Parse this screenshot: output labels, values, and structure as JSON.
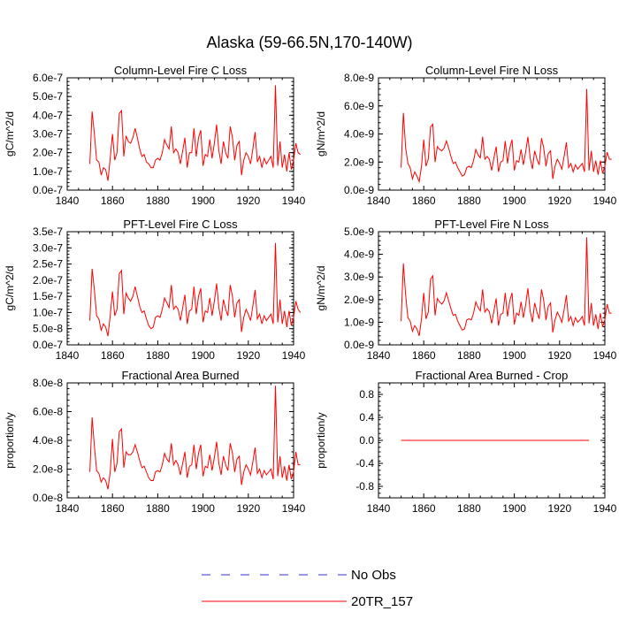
{
  "title": "Alaska (59-66.5N,170-140W)",
  "colors": {
    "series": "#ff0000",
    "obs": "#3333cc",
    "axis": "#000000"
  },
  "legend": [
    {
      "name": "No Obs",
      "style": "dashed",
      "color": "#3333cc"
    },
    {
      "name": "20TR_157",
      "style": "solid",
      "color": "#ff0000"
    }
  ],
  "chart_data": [
    {
      "type": "line",
      "title": "Column-Level Fire C Loss",
      "ylabel": "gC/m^2/d",
      "xlim": [
        1840,
        1940
      ],
      "ylim": [
        0,
        6e-07
      ],
      "xticks": [
        1840,
        1860,
        1880,
        1900,
        1920,
        1940
      ],
      "yticks": [
        0,
        1e-07,
        2e-07,
        3e-07,
        4e-07,
        5e-07,
        6e-07
      ],
      "ytick_labels": [
        "0.0e-7",
        "1.0e-7",
        "2.0e-7",
        "3.0e-7",
        "4.0e-7",
        "5.0e-7",
        "6.0e-7"
      ],
      "series": [
        {
          "name": "20TR_157",
          "start_year": 1850,
          "values": [
            1.4e-07,
            4.2e-07,
            3e-07,
            1.6e-07,
            1.5e-07,
            8e-08,
            1.2e-07,
            1.1e-07,
            5e-08,
            1.7e-07,
            3e-07,
            1.6e-07,
            2e-07,
            4.1e-07,
            4.25e-07,
            1.8e-07,
            2.9e-07,
            2.6e-07,
            2.5e-07,
            2.8e-07,
            3.3e-07,
            2.8e-07,
            2.2e-07,
            1.8e-07,
            1.9e-07,
            1.5e-07,
            1.4e-07,
            1.2e-07,
            1.2e-07,
            1.6e-07,
            1.7e-07,
            1.6e-07,
            2e-07,
            2.7e-07,
            2.4e-07,
            2.2e-07,
            3.4e-07,
            2e-07,
            2.2e-07,
            2e-07,
            1.4e-07,
            2.1e-07,
            2.8e-07,
            1.2e-07,
            2e-07,
            2e-07,
            3.3e-07,
            1.8e-07,
            2.8e-07,
            3.2e-07,
            1.3e-07,
            1.9e-07,
            1.8e-07,
            2.7e-07,
            1.7e-07,
            2.5e-07,
            3.5e-07,
            2.1e-07,
            1.4e-07,
            2.6e-07,
            2e-07,
            1.7e-07,
            3.4e-07,
            2.8e-07,
            1.6e-07,
            2.4e-07,
            2.6e-07,
            8e-08,
            1.6e-07,
            2e-07,
            1.8e-07,
            1.4e-07,
            2.2e-07,
            3.1e-07,
            1.5e-07,
            1.8e-07,
            1.2e-07,
            1.7e-07,
            1.4e-07,
            1.6e-07,
            1.8e-07,
            1.2e-07,
            5.6e-07,
            1.3e-07,
            2.6e-07,
            1.2e-07,
            1.9e-07,
            1e-07,
            2e-07,
            1.1e-07,
            1.6e-07,
            2.5e-07,
            2e-07,
            1.9e-07
          ]
        }
      ]
    },
    {
      "type": "line",
      "title": "Column-Level Fire N Loss",
      "ylabel": "gN/m^2/d",
      "xlim": [
        1840,
        1940
      ],
      "ylim": [
        0,
        8e-09
      ],
      "xticks": [
        1840,
        1860,
        1880,
        1900,
        1920,
        1940
      ],
      "yticks": [
        0,
        2e-09,
        4e-09,
        6e-09,
        8e-09
      ],
      "ytick_labels": [
        "0.0e-9",
        "2.0e-9",
        "4.0e-9",
        "6.0e-9",
        "8.0e-9"
      ],
      "series": [
        {
          "name": "20TR_157",
          "start_year": 1850,
          "values": [
            1.6e-09,
            5.5e-09,
            3e-09,
            1.9e-09,
            1.6e-09,
            8e-10,
            1.3e-09,
            1e-09,
            6e-10,
            1.7e-09,
            3.6e-09,
            1.7e-09,
            2.2e-09,
            4.5e-09,
            4.7e-09,
            2e-09,
            3.1e-09,
            2.9e-09,
            2.8e-09,
            3e-09,
            3.5e-09,
            3e-09,
            2.4e-09,
            1.9e-09,
            2e-09,
            1.6e-09,
            1.3e-09,
            1e-09,
            1.1e-09,
            1.6e-09,
            1.7e-09,
            1.6e-09,
            2.1e-09,
            2.9e-09,
            2.5e-09,
            2.3e-09,
            3.8e-09,
            2.2e-09,
            2.4e-09,
            2.2e-09,
            1.4e-09,
            2.3e-09,
            3.1e-09,
            1.3e-09,
            2e-09,
            2.1e-09,
            3.5e-09,
            1.9e-09,
            3e-09,
            3.6e-09,
            1.4e-09,
            2.1e-09,
            2e-09,
            2.9e-09,
            1.8e-09,
            2.7e-09,
            3.8e-09,
            2.3e-09,
            1.5e-09,
            2.8e-09,
            2.2e-09,
            1.8e-09,
            3.7e-09,
            3e-09,
            1.7e-09,
            2.6e-09,
            2.8e-09,
            8e-10,
            1.7e-09,
            2.2e-09,
            1.9e-09,
            1.5e-09,
            2.4e-09,
            3.4e-09,
            1.6e-09,
            1.9e-09,
            1.3e-09,
            1.8e-09,
            1.5e-09,
            1.7e-09,
            1.9e-09,
            1.3e-09,
            7.2e-09,
            1.4e-09,
            2.8e-09,
            1.3e-09,
            2.1e-09,
            1.1e-09,
            2.1e-09,
            1.2e-09,
            1.7e-09,
            2.7e-09,
            2.2e-09,
            2.2e-09
          ]
        }
      ]
    },
    {
      "type": "line",
      "title": "PFT-Level Fire C Loss",
      "ylabel": "gC/m^2/d",
      "xlim": [
        1840,
        1940
      ],
      "ylim": [
        0,
        3.5e-07
      ],
      "xticks": [
        1840,
        1860,
        1880,
        1900,
        1920,
        1940
      ],
      "yticks": [
        0,
        5e-08,
        1e-07,
        1.5e-07,
        2e-07,
        2.5e-07,
        3e-07,
        3.5e-07
      ],
      "ytick_labels": [
        "0.0e-7",
        "5.0e-8",
        "1.0e-7",
        "1.5e-7",
        "2.0e-7",
        "2.5e-7",
        "3.0e-7",
        "3.5e-7"
      ],
      "series": [
        {
          "name": "20TR_157",
          "start_year": 1850,
          "values": [
            7.5e-08,
            2.35e-07,
            1.7e-07,
            9e-08,
            8e-08,
            4.5e-08,
            6.5e-08,
            5.5e-08,
            2.7e-08,
            9e-08,
            1.65e-07,
            9e-08,
            1.1e-07,
            2.2e-07,
            2.3e-07,
            9.5e-08,
            1.6e-07,
            1.45e-07,
            1.35e-07,
            1.5e-07,
            1.8e-07,
            1.5e-07,
            1.2e-07,
            1e-07,
            1.05e-07,
            8e-08,
            6e-08,
            5e-08,
            5.5e-08,
            8.5e-08,
            9e-08,
            8.5e-08,
            1.1e-07,
            1.45e-07,
            1.3e-07,
            1.15e-07,
            1.85e-07,
            1.1e-07,
            1.2e-07,
            1.1e-07,
            7.5e-08,
            1.15e-07,
            1.55e-07,
            6.5e-08,
            1.05e-07,
            1.1e-07,
            1.8e-07,
            9.5e-08,
            1.5e-07,
            1.75e-07,
            7e-08,
            1.05e-07,
            1e-07,
            1.45e-07,
            9e-08,
            1.35e-07,
            1.9e-07,
            1.15e-07,
            7.5e-08,
            1.4e-07,
            1.1e-07,
            9e-08,
            1.85e-07,
            1.5e-07,
            8.5e-08,
            1.3e-07,
            1.4e-07,
            4e-08,
            8.5e-08,
            1.1e-07,
            9.5e-08,
            7.5e-08,
            1.2e-07,
            1.7e-07,
            8e-08,
            9.5e-08,
            6.5e-08,
            9e-08,
            7.5e-08,
            8.5e-08,
            9.5e-08,
            6.5e-08,
            3.15e-07,
            7e-08,
            1.4e-07,
            6.5e-08,
            1.05e-07,
            5.5e-08,
            1.05e-07,
            6e-08,
            8.5e-08,
            1.35e-07,
            1.1e-07,
            1e-07
          ]
        }
      ]
    },
    {
      "type": "line",
      "title": "PFT-Level Fire N Loss",
      "ylabel": "gN/m^2/d",
      "xlim": [
        1840,
        1940
      ],
      "ylim": [
        0,
        5e-09
      ],
      "xticks": [
        1840,
        1860,
        1880,
        1900,
        1920,
        1940
      ],
      "yticks": [
        0,
        1e-09,
        2e-09,
        3e-09,
        4e-09,
        5e-09
      ],
      "ytick_labels": [
        "0.0e-9",
        "1.0e-9",
        "2.0e-9",
        "3.0e-9",
        "4.0e-9",
        "5.0e-9"
      ],
      "series": [
        {
          "name": "20TR_157",
          "start_year": 1850,
          "values": [
            1.05e-09,
            3.6e-09,
            2.2e-09,
            1.2e-09,
            1.05e-09,
            6e-10,
            8.5e-10,
            7e-10,
            4e-10,
            1.15e-09,
            2.3e-09,
            1.15e-09,
            1.45e-09,
            2.9e-09,
            3.05e-09,
            1.3e-09,
            2.05e-09,
            1.9e-09,
            1.8e-09,
            1.95e-09,
            2.3e-09,
            1.95e-09,
            1.6e-09,
            1.3e-09,
            1.35e-09,
            1.05e-09,
            8.5e-10,
            6.5e-10,
            7e-10,
            1.1e-09,
            1.15e-09,
            1.1e-09,
            1.4e-09,
            1.9e-09,
            1.65e-09,
            1.5e-09,
            2.45e-09,
            1.45e-09,
            1.6e-09,
            1.45e-09,
            9.5e-10,
            1.5e-09,
            2.05e-09,
            8.5e-10,
            1.35e-09,
            1.4e-09,
            2.3e-09,
            1.25e-09,
            1.95e-09,
            2.3e-09,
            9e-10,
            1.4e-09,
            1.3e-09,
            1.9e-09,
            1.2e-09,
            1.75e-09,
            2.5e-09,
            1.5e-09,
            1e-09,
            1.85e-09,
            1.45e-09,
            1.15e-09,
            2.45e-09,
            1.95e-09,
            1.1e-09,
            1.7e-09,
            1.85e-09,
            5.5e-10,
            1.1e-09,
            1.45e-09,
            1.25e-09,
            1e-09,
            1.55e-09,
            2.2e-09,
            1.05e-09,
            1.25e-09,
            8.5e-10,
            1.2e-09,
            1e-09,
            1.1e-09,
            1.25e-09,
            8.5e-10,
            4.75e-09,
            9.5e-10,
            1.85e-09,
            8.5e-10,
            1.35e-09,
            7e-10,
            1.4e-09,
            8e-10,
            1.1e-09,
            1.8e-09,
            1.4e-09,
            1.4e-09
          ]
        }
      ]
    },
    {
      "type": "line",
      "title": "Fractional Area Burned",
      "ylabel": "proportion/y",
      "xlim": [
        1840,
        1940
      ],
      "ylim": [
        0,
        8e-08
      ],
      "xticks": [
        1840,
        1860,
        1880,
        1900,
        1920,
        1940
      ],
      "yticks": [
        0,
        2e-08,
        4e-08,
        6e-08,
        8e-08
      ],
      "ytick_labels": [
        "0.0e-8",
        "2.0e-8",
        "4.0e-8",
        "6.0e-8",
        "8.0e-8"
      ],
      "series": [
        {
          "name": "20TR_157",
          "start_year": 1850,
          "values": [
            1.8e-08,
            5.6e-08,
            3.6e-08,
            1.9e-08,
            1.7e-08,
            1.1e-08,
            1.4e-08,
            1.2e-08,
            6e-09,
            1.8e-08,
            4.1e-08,
            1.8e-08,
            2.4e-08,
            4.6e-08,
            4.8e-08,
            2.1e-08,
            3.2e-08,
            3e-08,
            3e-08,
            3.2e-08,
            3.7e-08,
            3.2e-08,
            2.6e-08,
            2.1e-08,
            2.2e-08,
            1.8e-08,
            1.4e-08,
            1.2e-08,
            1.2e-08,
            1.8e-08,
            1.9e-08,
            1.8e-08,
            2.3e-08,
            3.1e-08,
            2.7e-08,
            2.5e-08,
            3.8e-08,
            2.3e-08,
            2.6e-08,
            2.3e-08,
            1.6e-08,
            2.4e-08,
            3.2e-08,
            1.4e-08,
            2.2e-08,
            2.3e-08,
            3.7e-08,
            2e-08,
            3.1e-08,
            3.7e-08,
            1.5e-08,
            2.2e-08,
            2.1e-08,
            3e-08,
            1.9e-08,
            2.8e-08,
            3.9e-08,
            2.4e-08,
            1.6e-08,
            2.9e-08,
            2.3e-08,
            1.9e-08,
            3.8e-08,
            3.1e-08,
            1.8e-08,
            2.7e-08,
            2.9e-08,
            9e-09,
            1.8e-08,
            2.3e-08,
            2e-08,
            1.6e-08,
            2.5e-08,
            3.5e-08,
            1.7e-08,
            2e-08,
            1.4e-08,
            1.9e-08,
            1.6e-08,
            1.8e-08,
            2e-08,
            1.3e-08,
            7.8e-08,
            1.5e-08,
            2.9e-08,
            1.4e-08,
            2.2e-08,
            1.2e-08,
            2.3e-08,
            1.3e-08,
            1.8e-08,
            3.2e-08,
            2.3e-08,
            2.3e-08
          ]
        }
      ]
    },
    {
      "type": "line",
      "title": "Fractional Area Burned - Crop",
      "ylabel": "proportion/y",
      "xlim": [
        1840,
        1940
      ],
      "ylim": [
        -1.0,
        1.0
      ],
      "xticks": [
        1840,
        1860,
        1880,
        1900,
        1920,
        1940
      ],
      "yticks": [
        -0.8,
        -0.4,
        0.0,
        0.4,
        0.8
      ],
      "ytick_labels": [
        "-0.8",
        "-0.4",
        "0.0",
        "0.4",
        "0.8"
      ],
      "series": [
        {
          "name": "20TR_157",
          "start_year": 1850,
          "end_year": 1933,
          "constant": 0.0
        }
      ]
    }
  ]
}
